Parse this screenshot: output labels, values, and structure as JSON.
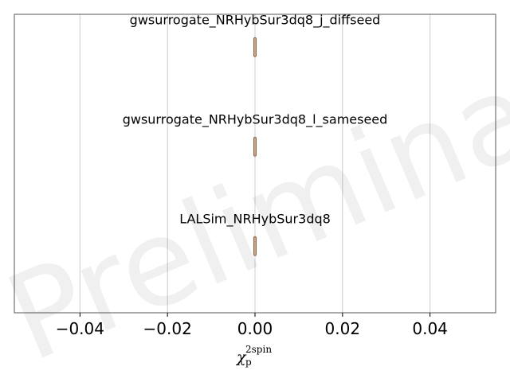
{
  "chart_data": {
    "type": "violin",
    "watermark": "Preliminary",
    "xlabel": {
      "base": "χ",
      "subscript": "p",
      "superscript": "2spin"
    },
    "xlim": [
      -0.055,
      0.055
    ],
    "xticks": [
      -0.04,
      -0.02,
      0.0,
      0.02,
      0.04
    ],
    "xtick_labels": [
      "−0.04",
      "−0.02",
      "0.00",
      "0.02",
      "0.04"
    ],
    "grid": "vertical",
    "series": [
      {
        "name": "gwsurrogate_NRHybSur3dq8_j_diffseed",
        "x_center": 0.0,
        "x_spread": 0.0002
      },
      {
        "name": "gwsurrogate_NRHybSur3dq8_l_sameseed",
        "x_center": 0.0,
        "x_spread": 0.0002
      },
      {
        "name": "LALSim_NRHybSur3dq8",
        "x_center": 0.0,
        "x_spread": 0.0002
      }
    ],
    "colors": {
      "violin_fill": "#c9a58b",
      "violin_edge": "#7a4a2c",
      "grid": "#cccccc",
      "frame": "#555555"
    }
  }
}
